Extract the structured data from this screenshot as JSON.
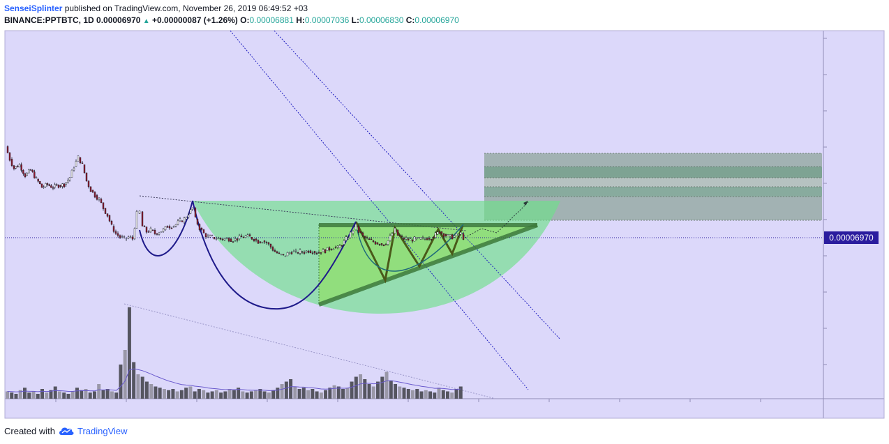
{
  "header": {
    "author": "SenseiSplinter",
    "published_text": "published on TradingView.com, November 26, 2019 06:49:52 +03",
    "symbol": "BINANCE:PPTBTC, 1D",
    "last_price": "0.00006970",
    "change_arrow": "▲",
    "change": "+0.00000087 (+1.26%)",
    "open_label": "O:",
    "open": "0.00006881",
    "high_label": "H:",
    "high": "0.00007036",
    "low_label": "L:",
    "low": "0.00006830",
    "close_label": "C:",
    "close": "0.00006970"
  },
  "price_label": "0.00006970",
  "footer": {
    "created_with": "Created with",
    "brand": "TradingView",
    "logo_icon": "tradingview-cloud-icon"
  },
  "colors": {
    "background": "#dcd8fa",
    "candle_up": "#ffffff",
    "candle_down": "#8b1a2e",
    "wick": "#131722",
    "volume": "#555560",
    "price_tag": "#2a1c9e",
    "accent_green": "#4caf50",
    "arc_line": "#1e1a8a"
  },
  "chart_data": {
    "type": "candlestick",
    "symbol": "BINANCE:PPTBTC",
    "interval": "1D",
    "last_close": 6.97e-05,
    "ohlc_last": {
      "open": 6.881e-05,
      "high": 7.036e-05,
      "low": 6.83e-05,
      "close": 6.97e-05
    },
    "price_series": [
      [
        8,
        0.00012
      ],
      [
        14,
        0.000113
      ],
      [
        20,
        0.000108
      ],
      [
        28,
        0.00011
      ],
      [
        36,
        0.000104
      ],
      [
        44,
        0.000107
      ],
      [
        52,
        0.000102
      ],
      [
        60,
        9.75e-05
      ],
      [
        68,
        9.9e-05
      ],
      [
        76,
        9.75e-05
      ],
      [
        84,
        9.85e-05
      ],
      [
        92,
        9.9e-05
      ],
      [
        100,
        0.000103
      ],
      [
        106,
        0.000109
      ],
      [
        112,
        0.000114
      ],
      [
        118,
        0.00011
      ],
      [
        124,
        0.000101
      ],
      [
        130,
        9.6e-05
      ],
      [
        136,
        9.3e-05
      ],
      [
        142,
        9.1e-05
      ],
      [
        148,
        8.6e-05
      ],
      [
        154,
        8.2e-05
      ],
      [
        160,
        7.6e-05
      ],
      [
        166,
        7.2e-05
      ],
      [
        172,
        7e-05
      ],
      [
        178,
        6.9e-05
      ],
      [
        184,
        7e-05
      ],
      [
        190,
        6.9e-05
      ],
      [
        196,
        8.3e-05
      ],
      [
        200,
        8.4e-05
      ],
      [
        204,
        7.6e-05
      ],
      [
        210,
        7.3e-05
      ],
      [
        216,
        7.4e-05
      ],
      [
        222,
        7.2e-05
      ],
      [
        228,
        7.3e-05
      ],
      [
        234,
        7.4e-05
      ],
      [
        240,
        7.6e-05
      ],
      [
        246,
        7.6e-05
      ],
      [
        252,
        7.7e-05
      ],
      [
        258,
        7.9e-05
      ],
      [
        264,
        8e-05
      ],
      [
        270,
        8.3e-05
      ],
      [
        276,
        8.6e-05
      ],
      [
        280,
        8e-05
      ],
      [
        286,
        7.5e-05
      ],
      [
        292,
        7.2e-05
      ],
      [
        298,
        7e-05
      ],
      [
        304,
        7e-05
      ],
      [
        310,
        6.95e-05
      ],
      [
        316,
        6.9e-05
      ],
      [
        322,
        6.9e-05
      ],
      [
        328,
        6.9e-05
      ],
      [
        334,
        6.85e-05
      ],
      [
        340,
        6.9e-05
      ],
      [
        346,
        7e-05
      ],
      [
        352,
        7.05e-05
      ],
      [
        358,
        7e-05
      ],
      [
        364,
        6.9e-05
      ],
      [
        370,
        6.75e-05
      ],
      [
        376,
        6.8e-05
      ],
      [
        382,
        6.7e-05
      ],
      [
        388,
        6.45e-05
      ],
      [
        394,
        6.2e-05
      ],
      [
        400,
        6.05e-05
      ],
      [
        406,
        5.95e-05
      ],
      [
        412,
        6.1e-05
      ],
      [
        418,
        6.2e-05
      ],
      [
        424,
        6.15e-05
      ],
      [
        430,
        6.2e-05
      ],
      [
        436,
        6.18e-05
      ],
      [
        442,
        6.25e-05
      ],
      [
        448,
        6.22e-05
      ],
      [
        454,
        6.15e-05
      ],
      [
        460,
        6.2e-05
      ],
      [
        466,
        6.25e-05
      ],
      [
        472,
        6.35e-05
      ],
      [
        478,
        6.45e-05
      ],
      [
        484,
        6.4e-05
      ],
      [
        490,
        6.6e-05
      ],
      [
        496,
        6.9e-05
      ],
      [
        502,
        7.2e-05
      ],
      [
        506,
        7.4e-05
      ],
      [
        510,
        7.6e-05
      ],
      [
        514,
        7.3e-05
      ],
      [
        520,
        7.05e-05
      ],
      [
        526,
        6.9e-05
      ],
      [
        532,
        6.8e-05
      ],
      [
        538,
        6.7e-05
      ],
      [
        544,
        6.65e-05
      ],
      [
        550,
        6.6e-05
      ],
      [
        556,
        6.8e-05
      ],
      [
        562,
        7.2e-05
      ],
      [
        566,
        7.4e-05
      ],
      [
        570,
        7.1e-05
      ],
      [
        576,
        6.95e-05
      ],
      [
        582,
        6.9e-05
      ],
      [
        588,
        6.85e-05
      ],
      [
        594,
        6.9e-05
      ],
      [
        600,
        6.88e-05
      ],
      [
        606,
        6.9e-05
      ],
      [
        612,
        6.95e-05
      ],
      [
        618,
        7e-05
      ],
      [
        624,
        7.15e-05
      ],
      [
        630,
        7.3e-05
      ],
      [
        636,
        7.15e-05
      ],
      [
        642,
        7.05e-05
      ],
      [
        648,
        7e-05
      ],
      [
        654,
        7.1e-05
      ],
      [
        660,
        7.2e-05
      ],
      [
        664,
        6.97e-05
      ]
    ],
    "volume_series": [
      6,
      5,
      4,
      7,
      9,
      5,
      6,
      4,
      8,
      5,
      7,
      10,
      6,
      5,
      4,
      6,
      9,
      7,
      8,
      5,
      6,
      12,
      7,
      8,
      6,
      5,
      28,
      40,
      75,
      30,
      20,
      18,
      14,
      12,
      10,
      9,
      8,
      7,
      8,
      6,
      7,
      9,
      10,
      6,
      8,
      7,
      5,
      6,
      7,
      5,
      6,
      8,
      7,
      9,
      6,
      5,
      6,
      7,
      8,
      6,
      5,
      7,
      9,
      12,
      14,
      16,
      10,
      8,
      9,
      7,
      8,
      6,
      5,
      7,
      9,
      11,
      10,
      8,
      9,
      14,
      18,
      20,
      16,
      12,
      10,
      14,
      18,
      22,
      15,
      12,
      10,
      9,
      8,
      7,
      8,
      6,
      7,
      6,
      5,
      9,
      7,
      6,
      5,
      8,
      10
    ]
  }
}
